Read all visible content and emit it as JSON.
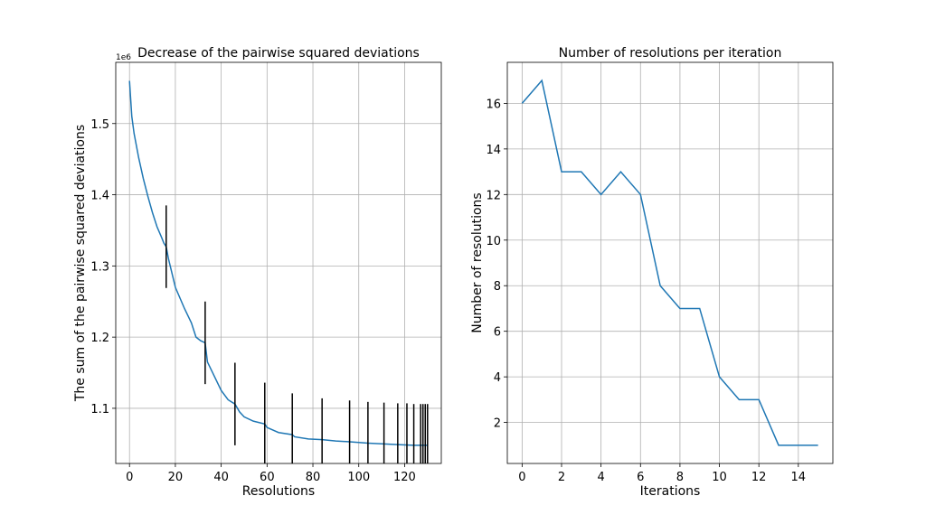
{
  "chart_data": [
    {
      "type": "line",
      "title": "Decrease of the pairwise squared deviations",
      "xlabel": "Resolutions",
      "ylabel": "The sum of the pairwise squared deviations",
      "y_offset_label": "1e6",
      "xlim": [
        -6,
        136
      ],
      "ylim": [
        1.0225,
        1.586
      ],
      "x_ticks": [
        0,
        20,
        40,
        60,
        80,
        100,
        120
      ],
      "y_ticks": [
        1.1,
        1.2,
        1.3,
        1.4,
        1.5
      ],
      "grid": true,
      "line_color": "#1f77b4",
      "marker_color": "#000000",
      "series": [
        {
          "x": [
            0,
            1,
            2,
            4,
            6,
            8,
            10,
            12,
            14,
            15,
            16,
            17,
            20,
            24,
            27,
            29,
            31,
            33,
            34,
            37,
            40,
            43,
            46,
            48,
            50,
            54,
            59,
            60,
            65,
            71,
            72,
            78,
            84,
            90,
            96,
            104,
            111,
            117,
            124,
            130
          ],
          "y": [
            1.56,
            1.51,
            1.486,
            1.452,
            1.423,
            1.398,
            1.375,
            1.355,
            1.34,
            1.332,
            1.327,
            1.31,
            1.27,
            1.24,
            1.22,
            1.2,
            1.195,
            1.192,
            1.165,
            1.145,
            1.125,
            1.112,
            1.106,
            1.095,
            1.088,
            1.082,
            1.078,
            1.073,
            1.066,
            1.063,
            1.06,
            1.057,
            1.056,
            1.054,
            1.053,
            1.051,
            1.05,
            1.049,
            1.048,
            1.048
          ]
        }
      ],
      "vertical_markers": {
        "x": [
          16,
          33,
          46,
          59,
          71,
          84,
          96,
          104,
          111,
          117,
          121,
          124,
          127,
          128,
          129,
          130
        ],
        "center": [
          1.327,
          1.192,
          1.106,
          1.078,
          1.063,
          1.056,
          1.053,
          1.051,
          1.05,
          1.049,
          1.049,
          1.048,
          1.048,
          1.048,
          1.048,
          1.048
        ],
        "half_length": 0.058
      }
    },
    {
      "type": "line",
      "title": "Number of resolutions per iteration",
      "xlabel": "Iterations",
      "ylabel": "Number of resolutions",
      "xlim": [
        -0.75,
        15.75
      ],
      "ylim": [
        0.2,
        17.8
      ],
      "x_ticks": [
        0,
        2,
        4,
        6,
        8,
        10,
        12,
        14
      ],
      "y_ticks": [
        2,
        4,
        6,
        8,
        10,
        12,
        14,
        16
      ],
      "grid": true,
      "line_color": "#1f77b4",
      "series": [
        {
          "x": [
            0,
            1,
            2,
            3,
            4,
            5,
            6,
            7,
            8,
            9,
            10,
            11,
            12,
            13,
            14,
            15
          ],
          "y": [
            16,
            17,
            13,
            13,
            12,
            13,
            12,
            8,
            7,
            7,
            4,
            3,
            3,
            1,
            1,
            1
          ]
        }
      ]
    }
  ]
}
